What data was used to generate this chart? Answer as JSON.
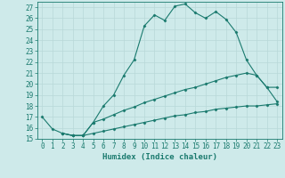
{
  "line1_x": [
    0,
    1,
    2,
    3,
    4,
    5,
    6,
    7,
    8,
    9,
    10,
    11,
    12,
    13,
    14,
    15,
    16,
    17,
    18,
    19,
    20,
    21,
    22,
    23
  ],
  "line1_y": [
    17.0,
    15.9,
    15.5,
    15.3,
    15.3,
    16.5,
    18.0,
    19.0,
    20.8,
    22.2,
    25.3,
    26.3,
    25.8,
    27.1,
    27.3,
    26.5,
    26.0,
    26.6,
    25.9,
    24.7,
    22.2,
    20.8,
    19.7,
    19.7
  ],
  "line2_x": [
    2,
    3,
    4,
    5,
    6,
    7,
    8,
    9,
    10,
    11,
    12,
    13,
    14,
    15,
    16,
    17,
    18,
    19,
    20,
    21,
    22,
    23
  ],
  "line2_y": [
    15.5,
    15.3,
    15.3,
    16.5,
    16.8,
    17.2,
    17.6,
    17.9,
    18.3,
    18.6,
    18.9,
    19.2,
    19.5,
    19.7,
    20.0,
    20.3,
    20.6,
    20.8,
    21.0,
    20.8,
    19.7,
    18.4
  ],
  "line3_x": [
    2,
    3,
    4,
    5,
    6,
    7,
    8,
    9,
    10,
    11,
    12,
    13,
    14,
    15,
    16,
    17,
    18,
    19,
    20,
    21,
    22,
    23
  ],
  "line3_y": [
    15.5,
    15.3,
    15.3,
    15.5,
    15.7,
    15.9,
    16.1,
    16.3,
    16.5,
    16.7,
    16.9,
    17.1,
    17.2,
    17.4,
    17.5,
    17.7,
    17.8,
    17.9,
    18.0,
    18.0,
    18.1,
    18.2
  ],
  "color": "#1a7a6e",
  "bg_color": "#ceeaea",
  "grid_color": "#b8d8d8",
  "xlabel": "Humidex (Indice chaleur)",
  "xlim": [
    -0.5,
    23.5
  ],
  "ylim": [
    15,
    27.5
  ],
  "xticks": [
    0,
    1,
    2,
    3,
    4,
    5,
    6,
    7,
    8,
    9,
    10,
    11,
    12,
    13,
    14,
    15,
    16,
    17,
    18,
    19,
    20,
    21,
    22,
    23
  ],
  "yticks": [
    15,
    16,
    17,
    18,
    19,
    20,
    21,
    22,
    23,
    24,
    25,
    26,
    27
  ],
  "fontsize_ticks": 5.5,
  "fontsize_xlabel": 6.5,
  "marker": "D",
  "markersize": 1.5,
  "linewidth": 0.8
}
